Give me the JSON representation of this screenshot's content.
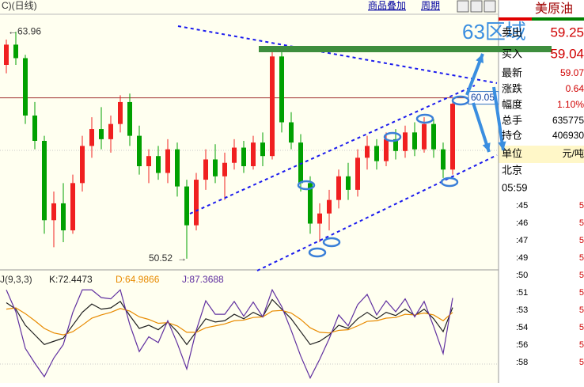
{
  "toolbar": {
    "period": "C)(日线)",
    "overlay": "商品叠加",
    "cycle": "周期"
  },
  "chart_data": {
    "type": "candlestick",
    "ylim": [
      50,
      65
    ],
    "up_color": "#f02020",
    "down_color": "#00a000",
    "candles": [
      [
        62.0,
        63.5,
        61.5,
        63.2
      ],
      [
        63.2,
        63.96,
        62.0,
        62.4
      ],
      [
        62.4,
        62.6,
        58.5,
        59.0
      ],
      [
        59.0,
        59.8,
        57.0,
        57.5
      ],
      [
        57.5,
        57.8,
        52.0,
        52.8
      ],
      [
        52.8,
        54.5,
        51.2,
        53.8
      ],
      [
        53.8,
        55.0,
        51.5,
        52.2
      ],
      [
        52.2,
        55.5,
        52.0,
        55.0
      ],
      [
        55.0,
        57.8,
        54.5,
        57.2
      ],
      [
        57.2,
        58.9,
        56.5,
        58.2
      ],
      [
        58.2,
        59.5,
        57.0,
        57.6
      ],
      [
        57.6,
        59.0,
        56.8,
        58.5
      ],
      [
        58.5,
        60.2,
        58.0,
        59.8
      ],
      [
        59.8,
        60.3,
        57.2,
        57.8
      ],
      [
        57.8,
        58.4,
        55.5,
        56.0
      ],
      [
        56.0,
        57.0,
        55.0,
        56.6
      ],
      [
        56.6,
        57.2,
        55.2,
        55.6
      ],
      [
        55.6,
        57.6,
        55.0,
        57.0
      ],
      [
        57.0,
        57.4,
        54.2,
        54.8
      ],
      [
        54.8,
        55.2,
        50.52,
        52.5
      ],
      [
        52.5,
        55.6,
        52.2,
        55.2
      ],
      [
        55.2,
        57.0,
        54.6,
        56.4
      ],
      [
        56.4,
        57.3,
        55.0,
        55.4
      ],
      [
        55.4,
        56.8,
        54.0,
        56.2
      ],
      [
        56.2,
        57.6,
        55.8,
        57.1
      ],
      [
        57.1,
        57.5,
        55.6,
        56.0
      ],
      [
        56.0,
        57.8,
        55.8,
        57.4
      ],
      [
        57.4,
        58.0,
        56.0,
        56.6
      ],
      [
        56.6,
        63.0,
        56.4,
        62.5
      ],
      [
        62.5,
        62.8,
        58.0,
        58.6
      ],
      [
        58.6,
        59.2,
        57.0,
        57.4
      ],
      [
        57.4,
        57.9,
        54.5,
        55.0
      ],
      [
        55.0,
        55.4,
        52.0,
        52.6
      ],
      [
        52.6,
        53.8,
        51.5,
        53.2
      ],
      [
        53.2,
        54.6,
        52.2,
        54.0
      ],
      [
        54.0,
        55.8,
        53.5,
        55.4
      ],
      [
        55.4,
        56.2,
        54.0,
        54.6
      ],
      [
        54.6,
        57.0,
        54.2,
        56.5
      ],
      [
        56.5,
        57.8,
        55.8,
        57.2
      ],
      [
        57.2,
        57.6,
        55.8,
        56.3
      ],
      [
        56.3,
        58.0,
        56.0,
        57.6
      ],
      [
        57.6,
        58.2,
        56.4,
        56.9
      ],
      [
        56.9,
        58.4,
        56.5,
        58.0
      ],
      [
        58.0,
        58.6,
        56.6,
        57.0
      ],
      [
        57.0,
        58.9,
        56.8,
        58.5
      ],
      [
        58.5,
        58.8,
        56.5,
        57.0
      ],
      [
        57.0,
        57.4,
        55.3,
        55.8
      ],
      [
        55.8,
        60.05,
        55.5,
        59.7
      ]
    ],
    "high": 63.96,
    "low": 50.52,
    "level": 60.05,
    "zone": "63区域",
    "indicator": {
      "name": "J(9,3,3)",
      "ylim": [
        -40,
        120
      ],
      "series": [
        {
          "name": "K:72.4473",
          "color": "#202020",
          "values": [
            80,
            70,
            45,
            30,
            15,
            20,
            25,
            45,
            65,
            78,
            70,
            72,
            82,
            60,
            40,
            45,
            38,
            50,
            35,
            15,
            35,
            55,
            50,
            52,
            62,
            55,
            65,
            58,
            85,
            70,
            55,
            35,
            15,
            20,
            30,
            45,
            40,
            55,
            65,
            55,
            65,
            60,
            70,
            60,
            70,
            55,
            35,
            72.4473
          ]
        },
        {
          "name": "D:64.9866",
          "color": "#e88a00",
          "values": [
            70,
            72,
            63,
            52,
            40,
            33,
            30,
            35,
            45,
            56,
            61,
            65,
            71,
            67,
            58,
            54,
            48,
            49,
            44,
            34,
            34,
            41,
            44,
            47,
            52,
            53,
            57,
            58,
            67,
            68,
            64,
            54,
            41,
            34,
            33,
            37,
            38,
            44,
            51,
            52,
            56,
            57,
            62,
            61,
            64,
            61,
            52,
            64.9866
          ]
        },
        {
          "name": "J:87.3688",
          "color": "#6030a0",
          "values": [
            100,
            66,
            9,
            -14,
            -35,
            -6,
            15,
            65,
            100,
            100,
            88,
            86,
            100,
            46,
            4,
            27,
            18,
            52,
            17,
            -23,
            37,
            83,
            62,
            62,
            82,
            59,
            81,
            58,
            100,
            74,
            37,
            -3,
            -37,
            -8,
            24,
            61,
            44,
            77,
            93,
            61,
            83,
            66,
            86,
            58,
            82,
            43,
            1,
            87.3688
          ]
        }
      ]
    }
  },
  "quote": {
    "title": "美原油",
    "rows": [
      {
        "label": "卖出",
        "value": "59.25"
      },
      {
        "label": "买入",
        "value": "59.04"
      },
      {
        "label": "最新",
        "value": "59.07"
      },
      {
        "label": "涨跌",
        "value": "0.64"
      },
      {
        "label": "幅度",
        "value": "1.10%"
      },
      {
        "label": "总手",
        "value": "635775"
      },
      {
        "label": "持仓",
        "value": "406930"
      },
      {
        "label": "单位",
        "value": "元/吨"
      }
    ],
    "location": "北京",
    "time": "05:59",
    "minutes": [
      {
        "time": ":45",
        "value": "5"
      },
      {
        "time": ":46",
        "value": "5"
      },
      {
        "time": ":47",
        "value": "5"
      },
      {
        "time": ":49",
        "value": "5"
      },
      {
        "time": ":50",
        "value": "5"
      },
      {
        "time": ":51",
        "value": "5"
      },
      {
        "time": ":53",
        "value": "5"
      },
      {
        "time": ":54",
        "value": "5"
      },
      {
        "time": ":56",
        "value": "5"
      },
      {
        "time": ":58",
        "value": "5"
      }
    ]
  }
}
